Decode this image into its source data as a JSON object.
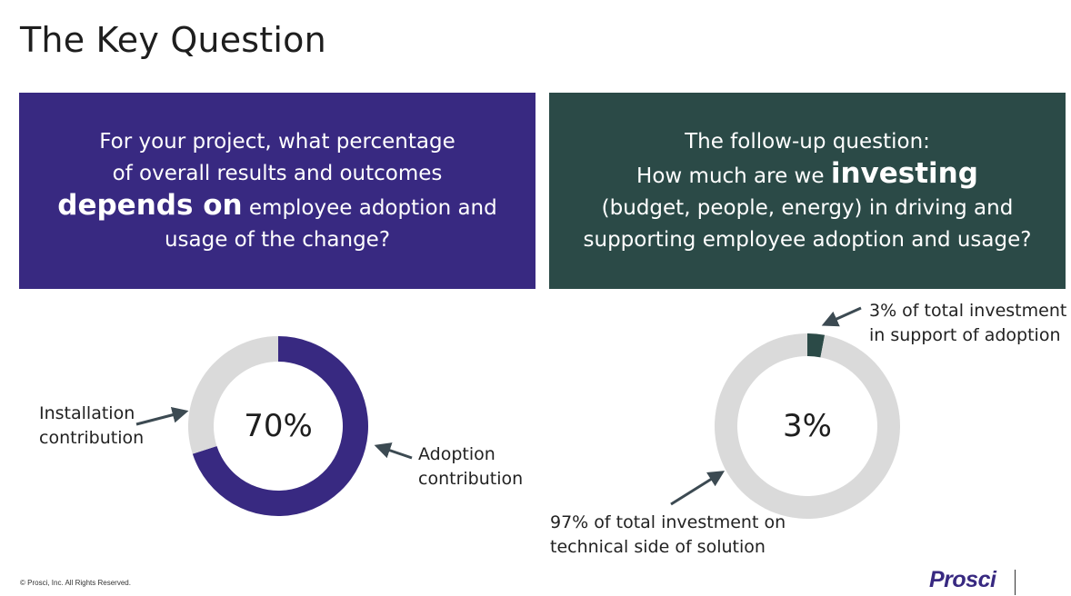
{
  "page": {
    "title": "The Key Question"
  },
  "colors": {
    "left_box": "#382981",
    "right_box": "#2b4a47",
    "ring_bg": "#dadada",
    "arrow": "#3c4a52",
    "logo": "#382981"
  },
  "left_box": {
    "line1": "For your project, what percentage",
    "line2": "of overall results and outcomes",
    "line3_bold": "depends on",
    "line3_rest": " employee adoption and",
    "line4": "usage of the change?"
  },
  "right_box": {
    "line1": "The follow-up question:",
    "line2_pre": "How much are we ",
    "line2_bold": "investing",
    "line3": "(budget, people, energy) in driving and",
    "line4": "supporting employee adoption and usage?"
  },
  "chart_data": [
    {
      "type": "pie",
      "donut": true,
      "center_label": "70%",
      "slices": [
        {
          "name": "Adoption contribution",
          "value": 70
        },
        {
          "name": "Installation contribution",
          "value": 30
        }
      ],
      "labels": {
        "installation_1": "Installation",
        "installation_2": "contribution",
        "adoption_1": "Adoption",
        "adoption_2": "contribution"
      }
    },
    {
      "type": "pie",
      "donut": true,
      "center_label": "3%",
      "slices": [
        {
          "name": "3% of total investment in support of adoption",
          "value": 3
        },
        {
          "name": "97% of total investment on technical side of solution",
          "value": 97
        }
      ],
      "labels": {
        "adoption_1": "3% of total investment",
        "adoption_2": "in support of adoption",
        "technical_1": "97% of total investment on",
        "technical_2": "technical side of solution"
      }
    }
  ],
  "footer": {
    "copyright": "© Prosci, Inc. All Rights Reserved.",
    "logo": "Prosci"
  }
}
